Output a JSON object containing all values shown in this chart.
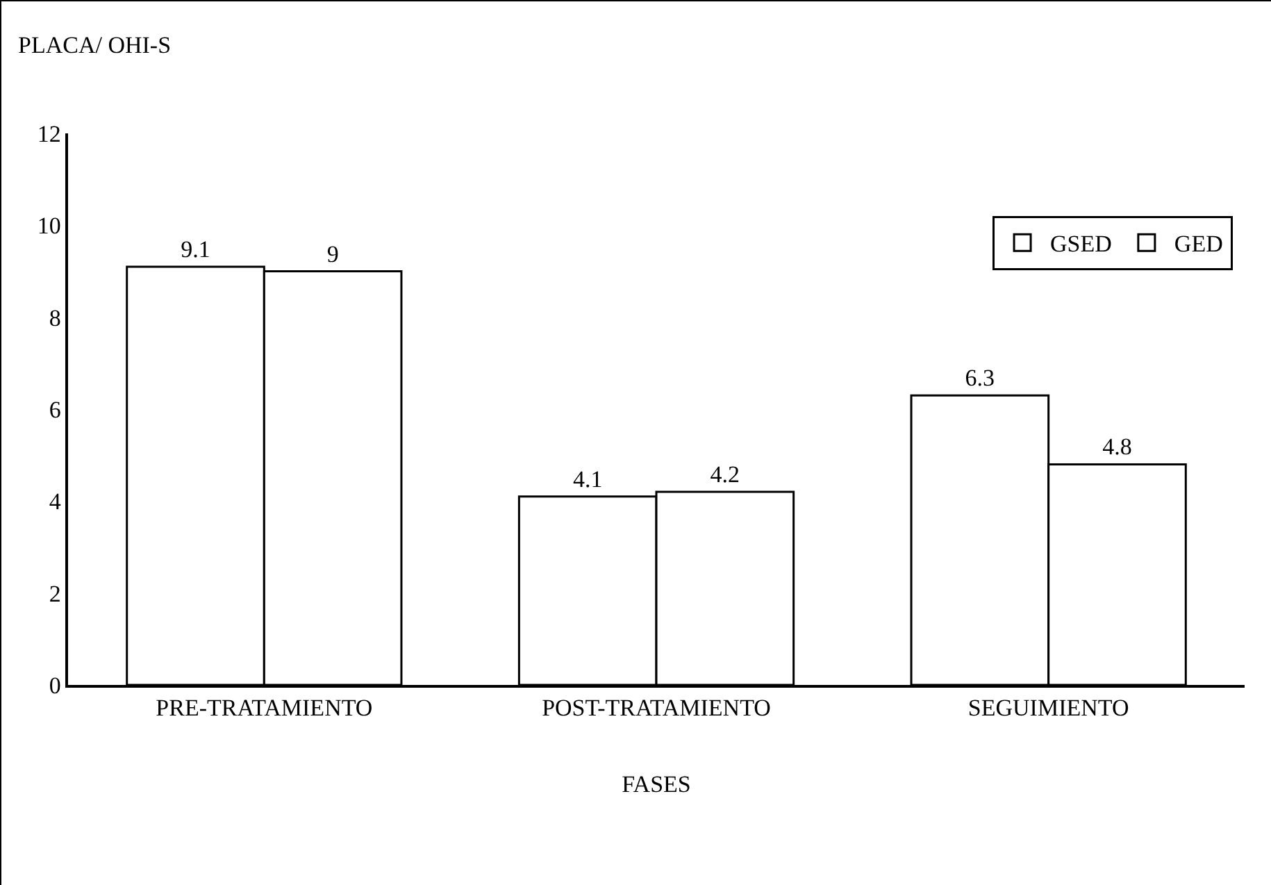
{
  "chart_data": {
    "type": "bar",
    "xlabel": "FASES",
    "ylabel": "PLACA/ OHI-S",
    "categories": [
      "PRE-TRATAMIENTO",
      "POST-TRATAMIENTO",
      "SEGUIMIENTO"
    ],
    "series": [
      {
        "name": "GSED",
        "color": "#ffffff",
        "values": [
          9.1,
          4.1,
          6.3
        ]
      },
      {
        "name": "GED",
        "color": "#ffffff",
        "values": [
          9,
          4.2,
          4.8
        ]
      }
    ],
    "ylim": [
      0,
      12
    ],
    "yticks": [
      0,
      2,
      4,
      6,
      8,
      10,
      12
    ],
    "grid": false,
    "legend": "top right",
    "data_labels": true
  }
}
